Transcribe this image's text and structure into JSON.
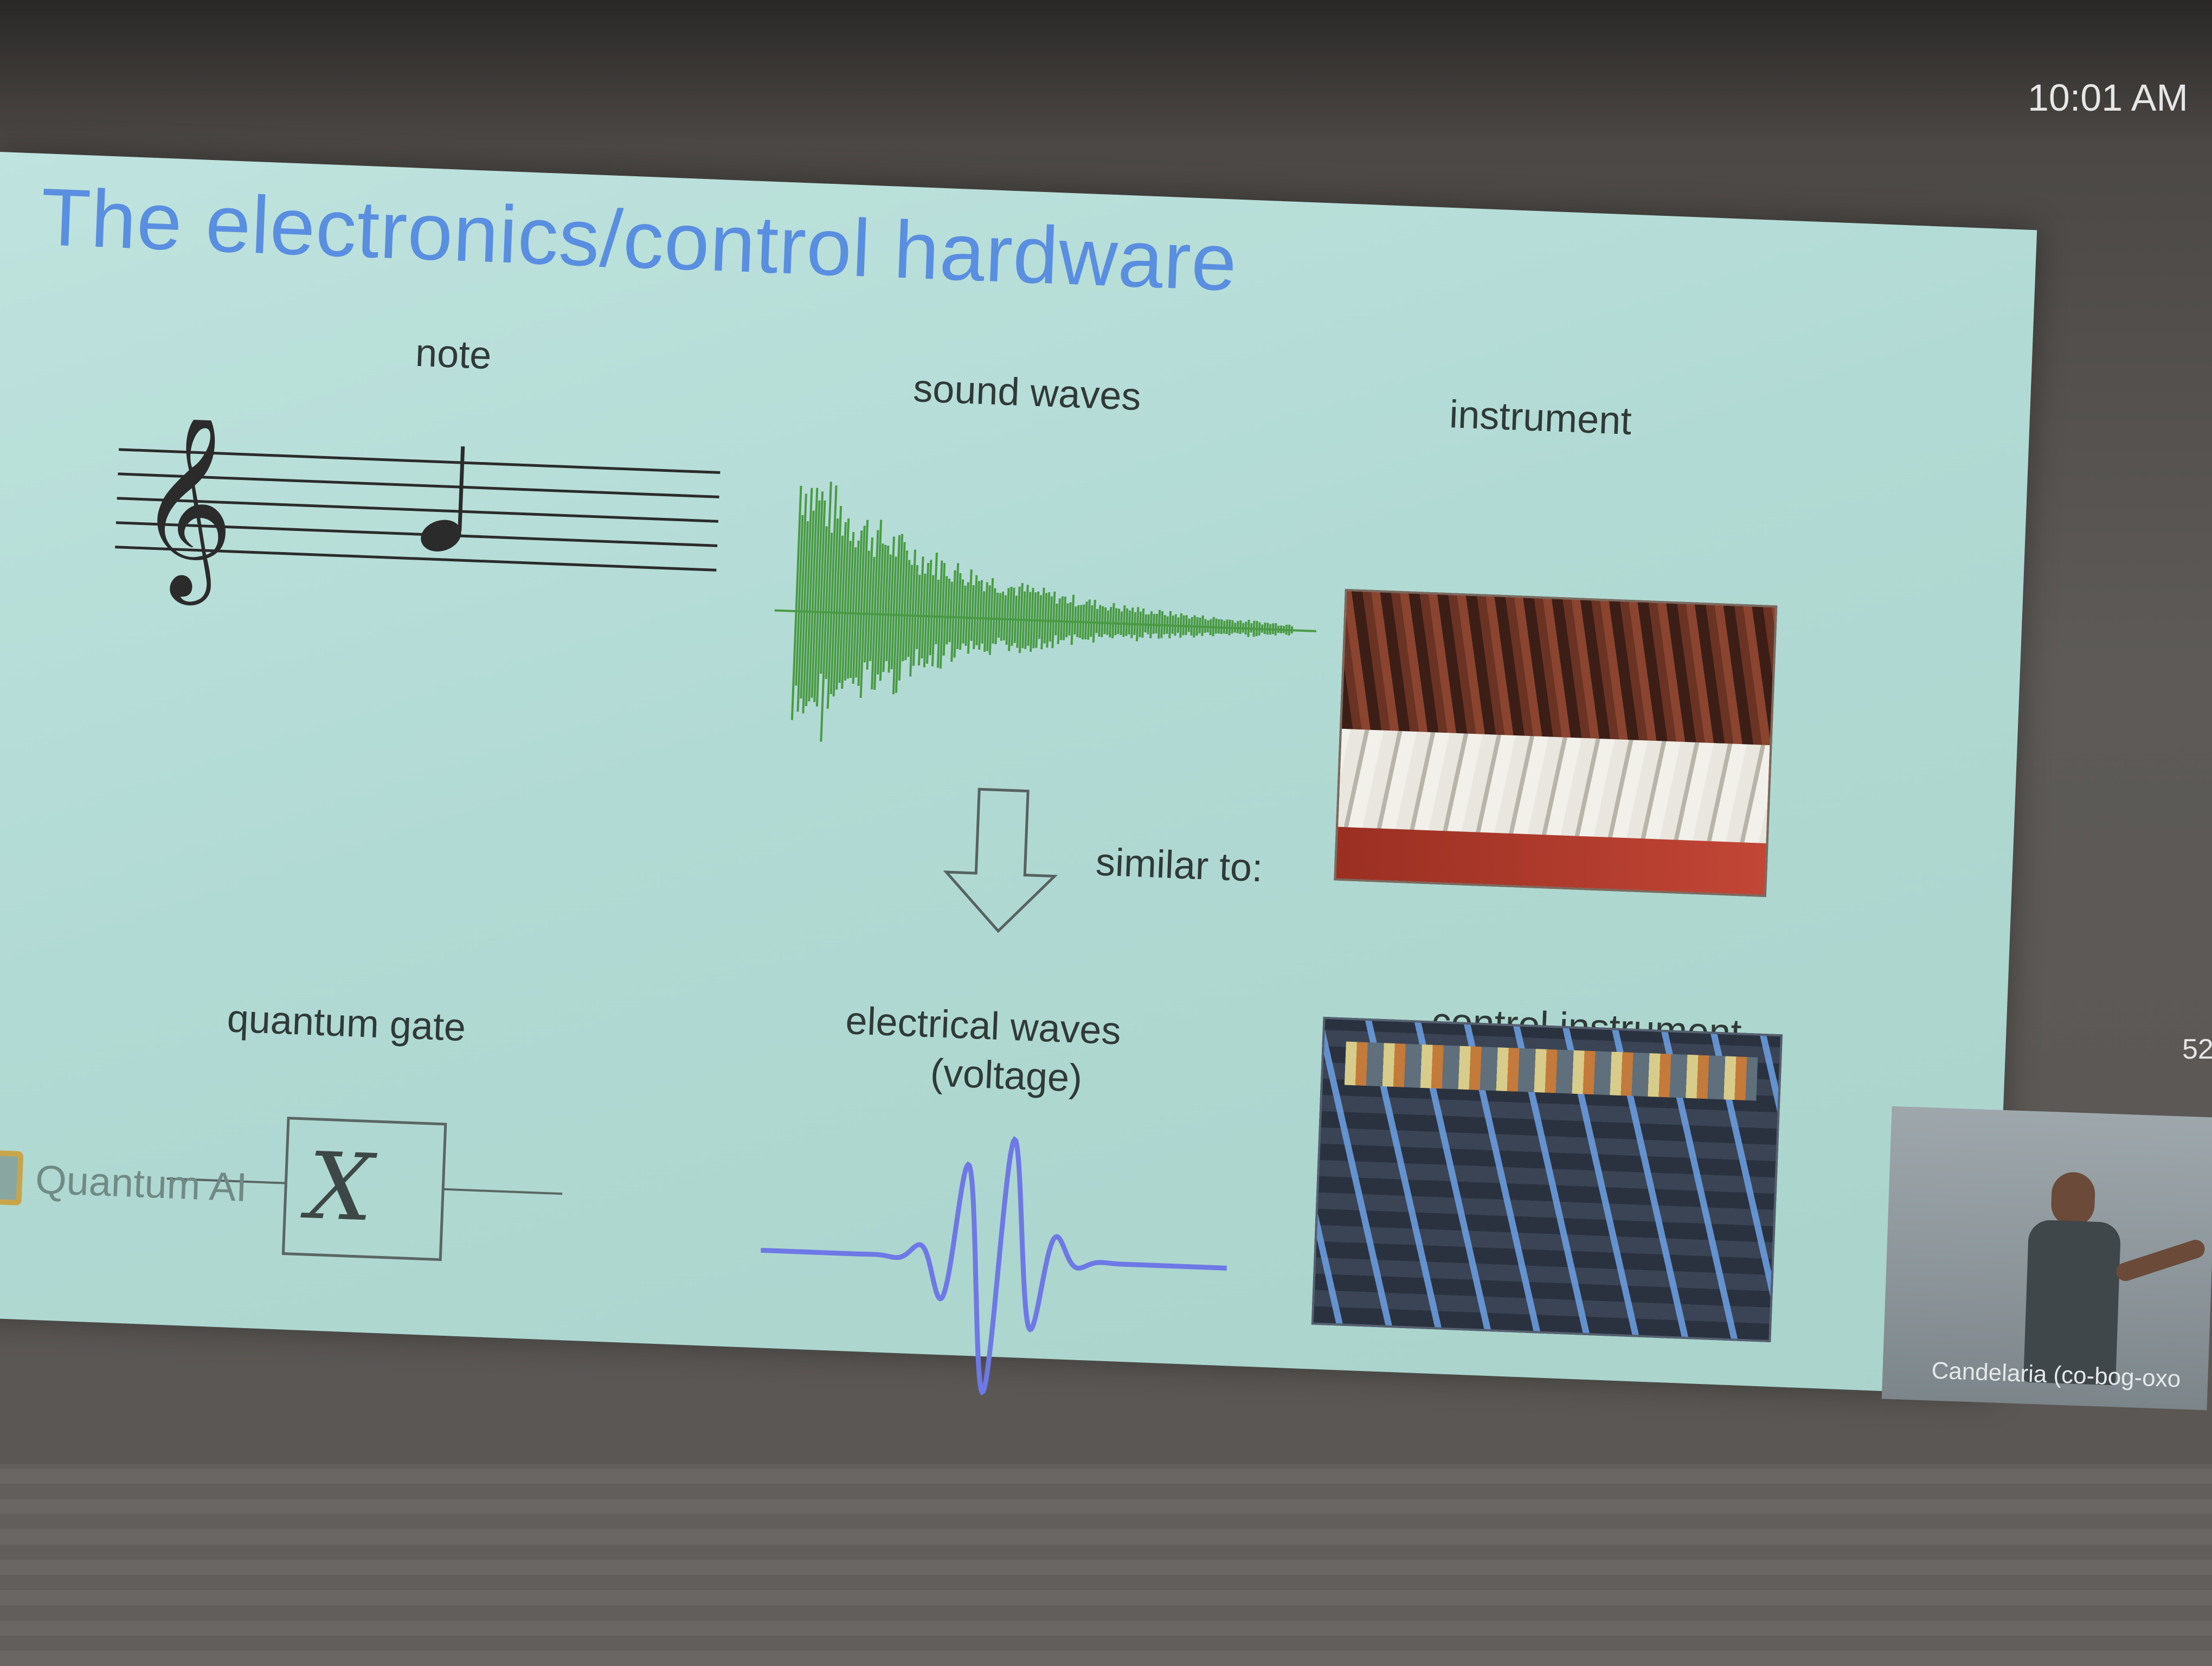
{
  "clock": "10:01 AM",
  "slide": {
    "title": "The electronics/control hardware",
    "labels": {
      "note": "note",
      "sound_waves": "sound waves",
      "instrument": "instrument",
      "similar_to": "similar to:",
      "quantum_gate": "quantum gate",
      "electrical_waves_line1": "electrical waves",
      "electrical_waves_line2": "(voltage)",
      "control_instrument": "control instrument",
      "gate_symbol": "X"
    },
    "brand": "Quantum AI",
    "slide_number": "52"
  },
  "webcam": {
    "name_tag": "Candelaria (co-bog-oxo"
  },
  "colors": {
    "title": "#5a8ee0",
    "sound_wave": "#4a9a45",
    "electric_wave": "#6e78e6",
    "slide_bg": "#b2dad4"
  }
}
